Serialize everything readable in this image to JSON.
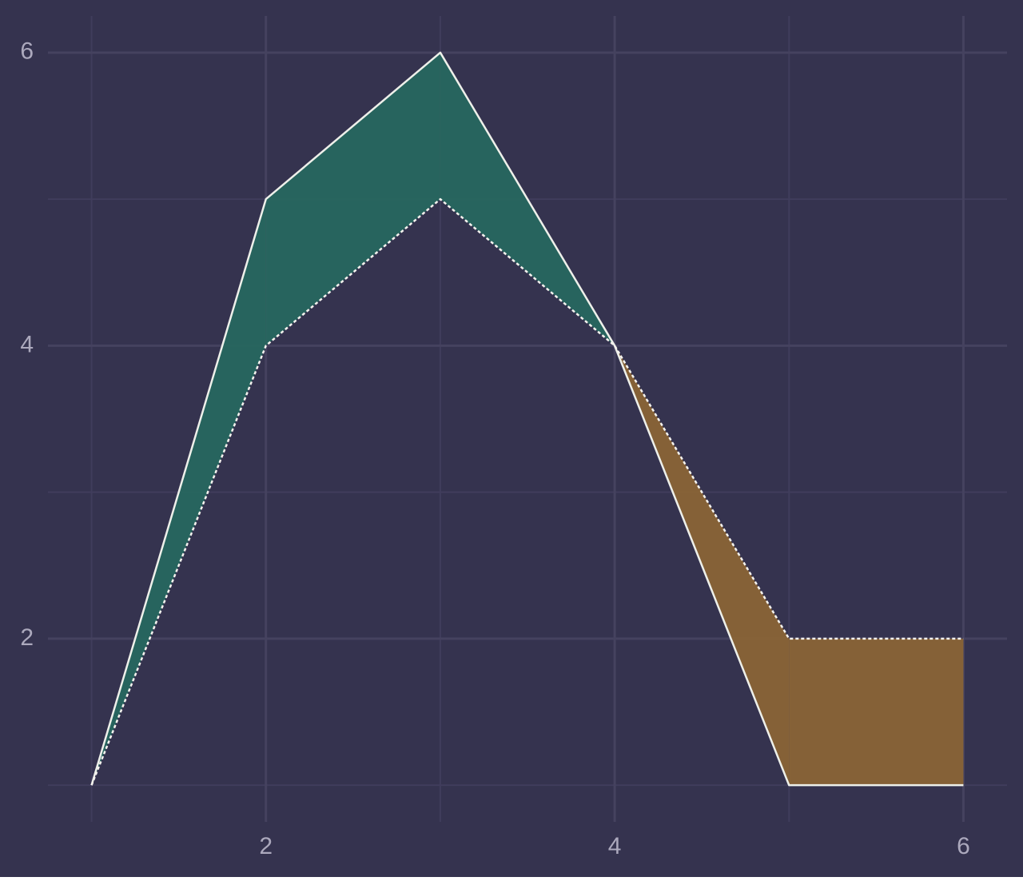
{
  "chart_data": {
    "type": "line-fill-between",
    "x": [
      1,
      2,
      3,
      4,
      5,
      6
    ],
    "series": [
      {
        "color": "#eef0ea",
        "dash": false,
        "values": [
          1,
          5,
          6,
          4,
          1,
          1
        ]
      },
      {
        "color": "#f4f2ee",
        "dash": true,
        "values": [
          1,
          4,
          5,
          4,
          2,
          2
        ]
      }
    ],
    "fill_colors": {
      "first_above": "#27675f",
      "first_below": "#8a6436"
    },
    "xlim": [
      0.75,
      6.25
    ],
    "ylim": [
      0.75,
      6.25
    ],
    "xticks": [
      2,
      4,
      6
    ],
    "yticks": [
      2,
      4,
      6
    ],
    "xminorticks": [
      1,
      3,
      5
    ],
    "yminorticks": [
      1,
      3,
      5
    ],
    "grid": true,
    "background": "#35334f"
  }
}
